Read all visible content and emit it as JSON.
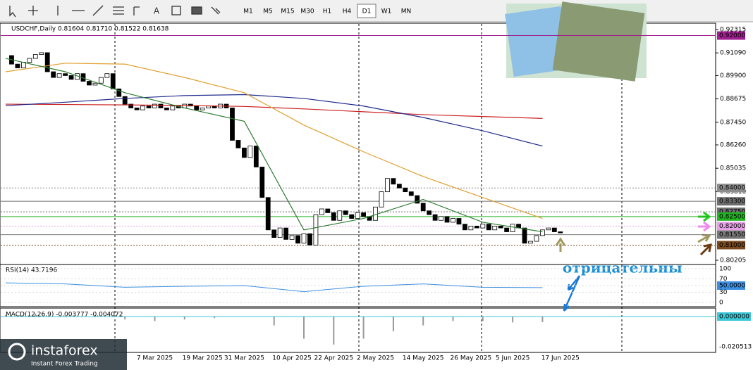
{
  "toolbar": {
    "timeframes": [
      "M1",
      "M5",
      "M15",
      "M30",
      "H1",
      "H4",
      "D1",
      "W1",
      "MN"
    ],
    "active": 6
  },
  "chart": {
    "header": "USDCHF,Daily  0.81604 0.81710 0.81522 0.81638",
    "price_ticks": [
      {
        "value": 0.92315,
        "label": "0.92315"
      },
      {
        "value": 0.9109,
        "label": "0.91090"
      },
      {
        "value": 0.899,
        "label": "0.89900"
      },
      {
        "value": 0.88675,
        "label": "0.88675"
      },
      {
        "value": 0.8745,
        "label": "0.87450"
      },
      {
        "value": 0.8626,
        "label": "0.86260"
      },
      {
        "value": 0.85035,
        "label": "0.85035"
      },
      {
        "value": 0.8381,
        "label": "0.83810"
      },
      {
        "value": 0.80205,
        "label": "0.80205"
      }
    ],
    "levels": [
      {
        "value": 0.92,
        "label": "0.92000",
        "color": "#a0208f"
      },
      {
        "value": 0.84,
        "label": "0.84000",
        "color": "#8c8c8c"
      },
      {
        "value": 0.833,
        "label": "0.83300",
        "color": "#6e6e6e"
      },
      {
        "value": 0.8275,
        "label": "0.82750",
        "color": "#6e6e6e"
      },
      {
        "value": 0.825,
        "label": "0.82500",
        "color": "#22b222"
      },
      {
        "value": 0.82,
        "label": "0.82000",
        "color": "#e6a0e6"
      },
      {
        "value": 0.8155,
        "label": "0.81550",
        "color": "#777777"
      },
      {
        "value": 0.81,
        "label": "0.81000",
        "color": "#7a4a1e"
      }
    ],
    "closes": [
      0.9095,
      0.905,
      0.903,
      0.906,
      0.908,
      0.91,
      0.911,
      0.901,
      0.898,
      0.9,
      0.899,
      0.897,
      0.9,
      0.896,
      0.894,
      0.895,
      0.898,
      0.9,
      0.892,
      0.888,
      0.884,
      0.882,
      0.881,
      0.883,
      0.882,
      0.884,
      0.882,
      0.881,
      0.883,
      0.882,
      0.884,
      0.883,
      0.881,
      0.882,
      0.883,
      0.882,
      0.884,
      0.882,
      0.865,
      0.861,
      0.856,
      0.862,
      0.851,
      0.835,
      0.818,
      0.814,
      0.819,
      0.813,
      0.815,
      0.811,
      0.816,
      0.81,
      0.826,
      0.829,
      0.827,
      0.823,
      0.828,
      0.826,
      0.824,
      0.827,
      0.825,
      0.823,
      0.83,
      0.838,
      0.845,
      0.842,
      0.84,
      0.838,
      0.836,
      0.832,
      0.828,
      0.826,
      0.823,
      0.825,
      0.822,
      0.824,
      0.821,
      0.818,
      0.82,
      0.819,
      0.821,
      0.818,
      0.82,
      0.819,
      0.817,
      0.821,
      0.819,
      0.811,
      0.812,
      0.815,
      0.818,
      0.819,
      0.817,
      0.8164
    ],
    "moving_averages": [
      {
        "color": "#cc1f1f",
        "values": [
          0.884,
          0.8838,
          0.8836,
          0.8833,
          0.8828,
          0.8815,
          0.88,
          0.8785,
          0.8775,
          0.8765
        ]
      },
      {
        "color": "#1f2a8c",
        "values": [
          0.8832,
          0.885,
          0.887,
          0.8885,
          0.889,
          0.887,
          0.883,
          0.877,
          0.87,
          0.862
        ]
      },
      {
        "color": "#e0a030",
        "values": [
          0.901,
          0.9055,
          0.905,
          0.898,
          0.89,
          0.873,
          0.859,
          0.846,
          0.835,
          0.824
        ]
      },
      {
        "color": "#2e7d32",
        "values": [
          0.908,
          0.901,
          0.89,
          0.882,
          0.875,
          0.818,
          0.824,
          0.834,
          0.822,
          0.817
        ]
      }
    ],
    "dates": [
      {
        "label": "7 Mar 2025",
        "bar": 25
      },
      {
        "label": "19 Mar 2025",
        "bar": 33
      },
      {
        "label": "31 Mar 2025",
        "bar": 40
      },
      {
        "label": "10 Apr 2025",
        "bar": 48
      },
      {
        "label": "22 Apr 2025",
        "bar": 55
      },
      {
        "label": "2 May 2025",
        "bar": 62
      },
      {
        "label": "14 May 2025",
        "bar": 70
      },
      {
        "label": "26 May 2025",
        "bar": 78
      },
      {
        "label": "5 Jun 2025",
        "bar": 85
      },
      {
        "label": "17 Jun 2025",
        "bar": 93
      }
    ],
    "rsi": {
      "label": "RSI(14) 43.7196",
      "ticks": [
        100,
        70,
        {
          "value": 50,
          "label": "50.0000"
        },
        30,
        0
      ],
      "values": [
        58,
        55,
        45,
        48,
        50,
        32,
        48,
        55,
        45,
        44
      ]
    },
    "macd": {
      "label": "MACD(12,26,9) -0.003777 -0.004072",
      "ticks": [
        {
          "value": 0,
          "label": "0.000000"
        },
        {
          "value": -0.020513,
          "label": "-0.020513"
        }
      ],
      "values": [
        0.001,
        0.002,
        0.0015,
        -0.0005,
        -0.002,
        -0.003,
        -0.002,
        -0.001,
        0,
        -0.006,
        -0.015,
        -0.019,
        -0.015,
        -0.01,
        -0.006,
        -0.003,
        -0.003,
        -0.004,
        -0.0038
      ]
    },
    "annotation": "отрицательны"
  },
  "logo": {
    "name": "instaforex",
    "tagline": "Instant Forex Trading"
  }
}
